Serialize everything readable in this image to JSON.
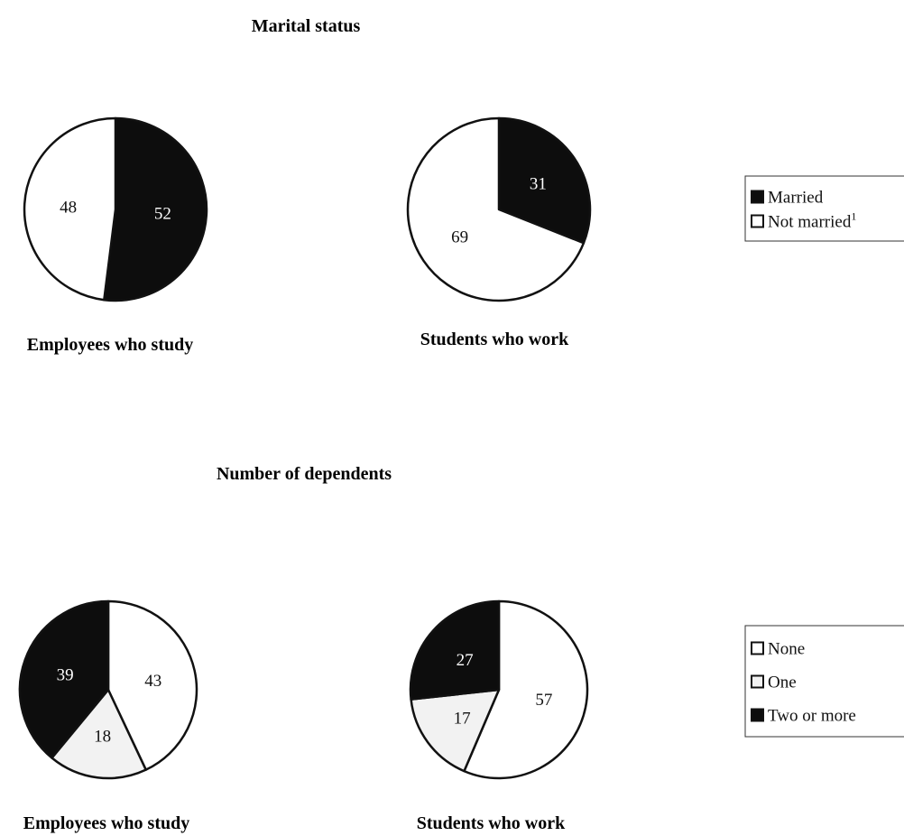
{
  "colors": {
    "Married": "#0d0d0d",
    "Not married": "#ffffff",
    "None": "#ffffff",
    "One": "#f2f2f2",
    "Two or more": "#0d0d0d"
  },
  "chart_data": [
    {
      "type": "pie",
      "title": "Marital status",
      "legend": {
        "placement": "right",
        "entries": [
          "Married",
          "Not married"
        ],
        "superscripts": [
          "",
          "1"
        ]
      },
      "pies": [
        {
          "caption": "Employees who study",
          "slices": [
            {
              "label": "Married",
              "value": 52
            },
            {
              "label": "Not married",
              "value": 48
            }
          ]
        },
        {
          "caption": "Students who work",
          "slices": [
            {
              "label": "Married",
              "value": 31
            },
            {
              "label": "Not married",
              "value": 69
            }
          ]
        }
      ]
    },
    {
      "type": "pie",
      "title": "Number of dependents",
      "legend": {
        "placement": "right",
        "entries": [
          "None",
          "One",
          "Two or more"
        ],
        "superscripts": [
          "",
          "",
          ""
        ]
      },
      "pies": [
        {
          "caption": "Employees who study",
          "slices": [
            {
              "label": "None",
              "value": 43
            },
            {
              "label": "One",
              "value": 18
            },
            {
              "label": "Two or more",
              "value": 39
            }
          ]
        },
        {
          "caption": "Students who work",
          "slices": [
            {
              "label": "None",
              "value": 57
            },
            {
              "label": "One",
              "value": 17
            },
            {
              "label": "Two or more",
              "value": 27
            }
          ]
        }
      ]
    }
  ]
}
